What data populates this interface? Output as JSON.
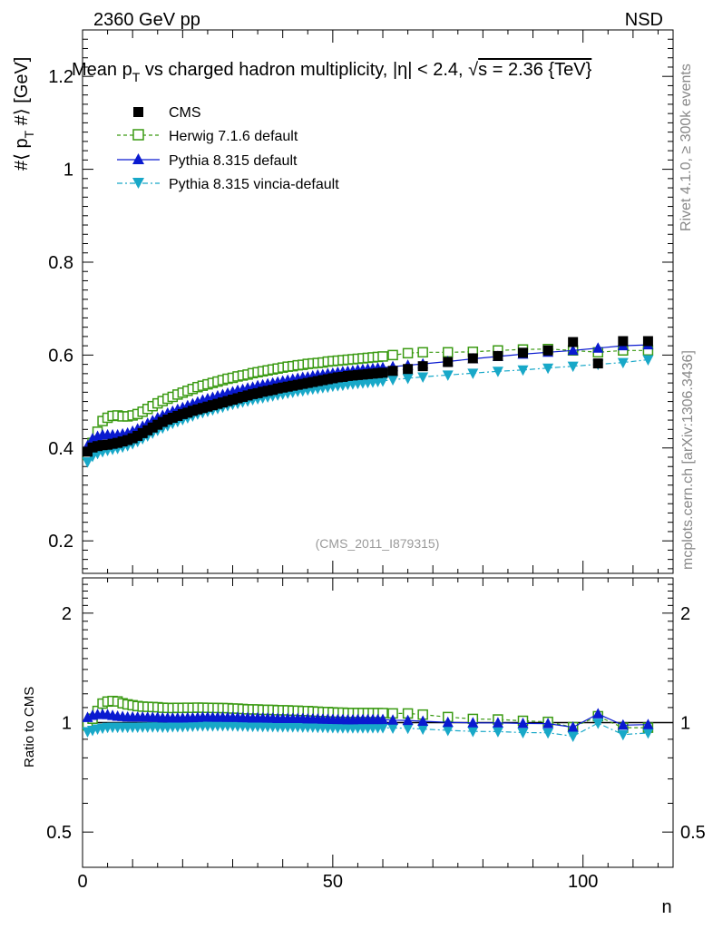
{
  "header": {
    "left": "2360 GeV pp",
    "right": "NSD"
  },
  "side": {
    "rivet": "Rivet 4.1.0, ≥ 300k events",
    "mcplots": "mcplots.cern.ch [arXiv:1306.3436]"
  },
  "colors": {
    "cms": "#000000",
    "herwig": "#3a9a12",
    "pythia": "#0a1ad0",
    "vincia": "#18a8c8"
  },
  "chart_data": [
    {
      "type": "scatter",
      "title": "Mean p_T vs charged hadron multiplicity, |η| < 2.4, √s = 2.36 {TeV}",
      "title_parts": {
        "a": "Mean p",
        "sub": "T",
        "b": " vs charged hadron multiplicity, ",
        "eta": "η| < 2.4, ",
        "sqrt": "√",
        "s": "s = 2.36 {TeV}"
      },
      "ylabel": "#⟨ p_T #⟩ [GeV]",
      "ylabel_parts": {
        "a": "#⟨ p",
        "sub": "T",
        "b": " #⟩ [GeV]"
      },
      "xlabel": "n",
      "xlim": [
        0,
        118
      ],
      "ylim": [
        0.13,
        1.3
      ],
      "yticks": [
        0.2,
        0.4,
        0.6,
        0.8,
        1,
        1.2
      ],
      "ytick_labels": [
        "0.2",
        "0.4",
        "0.6",
        "0.8",
        "1",
        "1.2"
      ],
      "watermark": "(CMS_2011_I879315)",
      "x": [
        1,
        2,
        3,
        4,
        5,
        6,
        7,
        8,
        9,
        10,
        11,
        12,
        13,
        14,
        15,
        16,
        17,
        18,
        19,
        20,
        21,
        22,
        23,
        24,
        25,
        26,
        27,
        28,
        29,
        30,
        31,
        32,
        33,
        34,
        35,
        36,
        37,
        38,
        39,
        40,
        41,
        42,
        43,
        44,
        45,
        46,
        47,
        48,
        49,
        50,
        51,
        52,
        53,
        54,
        55,
        56,
        57,
        58,
        59,
        60,
        62,
        65,
        68,
        73,
        78,
        83,
        88,
        93,
        98,
        103,
        108,
        113
      ],
      "series": [
        {
          "name": "CMS",
          "marker": "square-filled",
          "values": [
            0.392,
            0.401,
            0.404,
            0.406,
            0.407,
            0.409,
            0.411,
            0.414,
            0.417,
            0.421,
            0.426,
            0.432,
            0.438,
            0.444,
            0.45,
            0.456,
            0.461,
            0.465,
            0.469,
            0.473,
            0.476,
            0.48,
            0.483,
            0.486,
            0.489,
            0.492,
            0.495,
            0.498,
            0.501,
            0.504,
            0.507,
            0.51,
            0.513,
            0.516,
            0.518,
            0.521,
            0.523,
            0.525,
            0.528,
            0.53,
            0.532,
            0.534,
            0.536,
            0.538,
            0.54,
            0.542,
            0.544,
            0.546,
            0.548,
            0.55,
            0.552,
            0.553,
            0.555,
            0.556,
            0.557,
            0.558,
            0.559,
            0.56,
            0.561,
            0.562,
            0.566,
            0.57,
            0.576,
            0.585,
            0.593,
            0.598,
            0.605,
            0.61,
            0.628,
            0.582,
            0.63,
            0.63
          ]
        },
        {
          "name": "Herwig 7.1.6 default",
          "marker": "square-open",
          "dash": "4,3",
          "values": [
            0.385,
            0.411,
            0.435,
            0.458,
            0.465,
            0.469,
            0.47,
            0.468,
            0.468,
            0.47,
            0.473,
            0.478,
            0.484,
            0.49,
            0.496,
            0.501,
            0.506,
            0.51,
            0.515,
            0.519,
            0.523,
            0.527,
            0.531,
            0.534,
            0.537,
            0.54,
            0.543,
            0.546,
            0.549,
            0.551,
            0.554,
            0.556,
            0.558,
            0.561,
            0.563,
            0.565,
            0.567,
            0.569,
            0.571,
            0.573,
            0.575,
            0.576,
            0.578,
            0.579,
            0.581,
            0.582,
            0.583,
            0.584,
            0.586,
            0.587,
            0.588,
            0.589,
            0.59,
            0.591,
            0.592,
            0.593,
            0.594,
            0.595,
            0.596,
            0.597,
            0.6,
            0.604,
            0.606,
            0.606,
            0.607,
            0.61,
            0.612,
            0.613,
            0.61,
            0.606,
            0.61,
            0.61
          ]
        },
        {
          "name": "Pythia 8.315 default",
          "marker": "triangle-up",
          "dash": "",
          "values": [
            0.405,
            0.42,
            0.425,
            0.428,
            0.428,
            0.428,
            0.428,
            0.43,
            0.432,
            0.436,
            0.441,
            0.447,
            0.453,
            0.459,
            0.465,
            0.47,
            0.475,
            0.479,
            0.483,
            0.487,
            0.491,
            0.495,
            0.499,
            0.503,
            0.506,
            0.509,
            0.512,
            0.515,
            0.518,
            0.521,
            0.524,
            0.526,
            0.529,
            0.531,
            0.534,
            0.536,
            0.538,
            0.54,
            0.542,
            0.544,
            0.546,
            0.548,
            0.55,
            0.552,
            0.553,
            0.555,
            0.557,
            0.558,
            0.56,
            0.561,
            0.563,
            0.564,
            0.565,
            0.566,
            0.568,
            0.569,
            0.57,
            0.571,
            0.572,
            0.573,
            0.575,
            0.578,
            0.581,
            0.586,
            0.592,
            0.597,
            0.602,
            0.606,
            0.61,
            0.615,
            0.62,
            0.622
          ]
        },
        {
          "name": "Pythia 8.315 vincia-default",
          "marker": "triangle-down",
          "dash": "6,3,2,3",
          "values": [
            0.37,
            0.382,
            0.388,
            0.392,
            0.395,
            0.397,
            0.399,
            0.402,
            0.405,
            0.409,
            0.414,
            0.42,
            0.426,
            0.432,
            0.438,
            0.443,
            0.448,
            0.453,
            0.457,
            0.461,
            0.465,
            0.469,
            0.473,
            0.476,
            0.479,
            0.482,
            0.485,
            0.488,
            0.491,
            0.494,
            0.496,
            0.499,
            0.501,
            0.504,
            0.506,
            0.508,
            0.51,
            0.512,
            0.514,
            0.516,
            0.518,
            0.52,
            0.522,
            0.523,
            0.525,
            0.527,
            0.528,
            0.53,
            0.531,
            0.533,
            0.534,
            0.535,
            0.537,
            0.538,
            0.539,
            0.54,
            0.541,
            0.542,
            0.543,
            0.544,
            0.547,
            0.55,
            0.553,
            0.557,
            0.561,
            0.565,
            0.568,
            0.572,
            0.576,
            0.58,
            0.584,
            0.59
          ]
        }
      ]
    },
    {
      "type": "scatter",
      "title": "",
      "ylabel": "Ratio to CMS",
      "xlabel": "n",
      "yscale": "log",
      "xlim": [
        0,
        118
      ],
      "ylim": [
        0.4,
        2.5
      ],
      "yticks": [
        0.5,
        1,
        2
      ],
      "ytick_labels": [
        "0.5",
        "1",
        "2"
      ],
      "xticks": [
        0,
        50,
        100
      ],
      "xtick_labels": [
        "0",
        "50",
        "100"
      ],
      "reference": 1
    }
  ]
}
